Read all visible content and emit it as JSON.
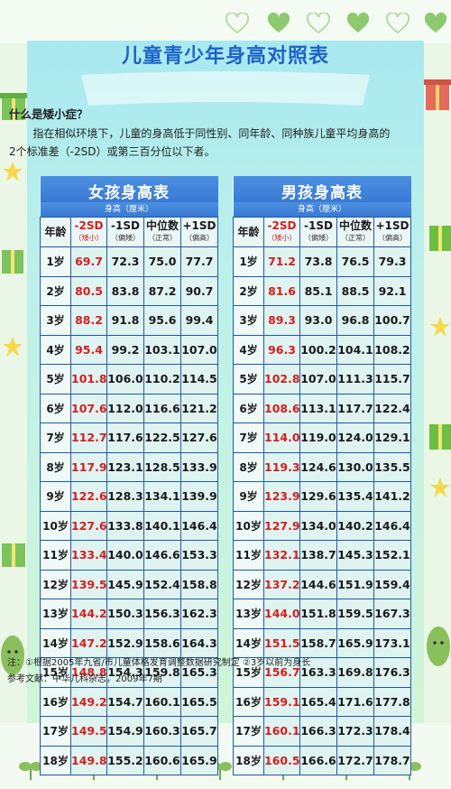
{
  "title": "儿童青少年身高对照表",
  "question": "什么是矮小症？",
  "description": "指在相似环境下，儿童的身高低于同性别、同年龄、同种族儿童平均身高的2个标准差（-2SD）或第三百分位以下者。",
  "girls": {
    "title": "女孩身高表",
    "unit": "身高（厘米）",
    "headers": [
      "年龄",
      "-2SD",
      "-1SD",
      "中位数",
      "+1SD"
    ],
    "subheaders": [
      "",
      "（矮小）",
      "（偏矮）",
      "（正常）",
      "（偏高）"
    ],
    "rows": [
      [
        "1岁",
        "69.7",
        "72.3",
        "75.0",
        "77.7"
      ],
      [
        "2岁",
        "80.5",
        "83.8",
        "87.2",
        "90.7"
      ],
      [
        "3岁",
        "88.2",
        "91.8",
        "95.6",
        "99.4"
      ],
      [
        "4岁",
        "95.4",
        "99.2",
        "103.1",
        "107.0"
      ],
      [
        "5岁",
        "101.8",
        "106.0",
        "110.2",
        "114.5"
      ],
      [
        "6岁",
        "107.6",
        "112.0",
        "116.6",
        "121.2"
      ],
      [
        "7岁",
        "112.7",
        "117.6",
        "122.5",
        "127.6"
      ],
      [
        "8岁",
        "117.9",
        "123.1",
        "128.5",
        "133.9"
      ],
      [
        "9岁",
        "122.6",
        "128.3",
        "134.1",
        "139.9"
      ],
      [
        "10岁",
        "127.6",
        "133.8",
        "140.1",
        "146.4"
      ],
      [
        "11岁",
        "133.4",
        "140.0",
        "146.6",
        "153.3"
      ],
      [
        "12岁",
        "139.5",
        "145.9",
        "152.4",
        "158.8"
      ],
      [
        "13岁",
        "144.2",
        "150.3",
        "156.3",
        "162.3"
      ],
      [
        "14岁",
        "147.2",
        "152.9",
        "158.6",
        "164.3"
      ],
      [
        "15岁",
        "148.8",
        "154.3",
        "159.8",
        "165.3"
      ],
      [
        "16岁",
        "149.2",
        "154.7",
        "160.1",
        "165.5"
      ],
      [
        "17岁",
        "149.5",
        "154.9",
        "160.3",
        "165.7"
      ],
      [
        "18岁",
        "149.8",
        "155.2",
        "160.6",
        "165.9"
      ]
    ]
  },
  "boys": {
    "title": "男孩身高表",
    "unit": "身高（厘米）",
    "headers": [
      "年龄",
      "-2SD",
      "-1SD",
      "中位数",
      "+1SD"
    ],
    "subheaders": [
      "",
      "（矮小）",
      "（偏矮）",
      "（正常）",
      "（偏高）"
    ],
    "rows": [
      [
        "1岁",
        "71.2",
        "73.8",
        "76.5",
        "79.3"
      ],
      [
        "2岁",
        "81.6",
        "85.1",
        "88.5",
        "92.1"
      ],
      [
        "3岁",
        "89.3",
        "93.0",
        "96.8",
        "100.7"
      ],
      [
        "4岁",
        "96.3",
        "100.2",
        "104.1",
        "108.2"
      ],
      [
        "5岁",
        "102.8",
        "107.0",
        "111.3",
        "115.7"
      ],
      [
        "6岁",
        "108.6",
        "113.1",
        "117.7",
        "122.4"
      ],
      [
        "7岁",
        "114.0",
        "119.0",
        "124.0",
        "129.1"
      ],
      [
        "8岁",
        "119.3",
        "124.6",
        "130.0",
        "135.5"
      ],
      [
        "9岁",
        "123.9",
        "129.6",
        "135.4",
        "141.2"
      ],
      [
        "10岁",
        "127.9",
        "134.0",
        "140.2",
        "146.4"
      ],
      [
        "11岁",
        "132.1",
        "138.7",
        "145.3",
        "152.1"
      ],
      [
        "12岁",
        "137.2",
        "144.6",
        "151.9",
        "159.4"
      ],
      [
        "13岁",
        "144.0",
        "151.8",
        "159.5",
        "167.3"
      ],
      [
        "14岁",
        "151.5",
        "158.7",
        "165.9",
        "173.1"
      ],
      [
        "15岁",
        "156.7",
        "163.3",
        "169.8",
        "176.3"
      ],
      [
        "16岁",
        "159.1",
        "165.4",
        "171.6",
        "177.8"
      ],
      [
        "17岁",
        "160.1",
        "166.3",
        "172.3",
        "178.4"
      ],
      [
        "18岁",
        "160.5",
        "166.6",
        "172.7",
        "178.7"
      ]
    ]
  },
  "footnote": "注：①根据2005年九省/市儿童体格发育调整数据研究制定  ②3岁以前为身长",
  "reference": "参考文献：中华儿科杂志，2009年7期",
  "colors": {
    "title_blue": "#1e63c9",
    "header_blue": "#3a7ad6",
    "short_red": "#d21f1f",
    "card_teal": "#a8e9ef",
    "leaf_green": "#6cbf3f"
  },
  "icons": [
    "heart-icon",
    "gift-box-icon",
    "star-icon",
    "leaf-sprout-icon",
    "smiling-bean-icon"
  ]
}
